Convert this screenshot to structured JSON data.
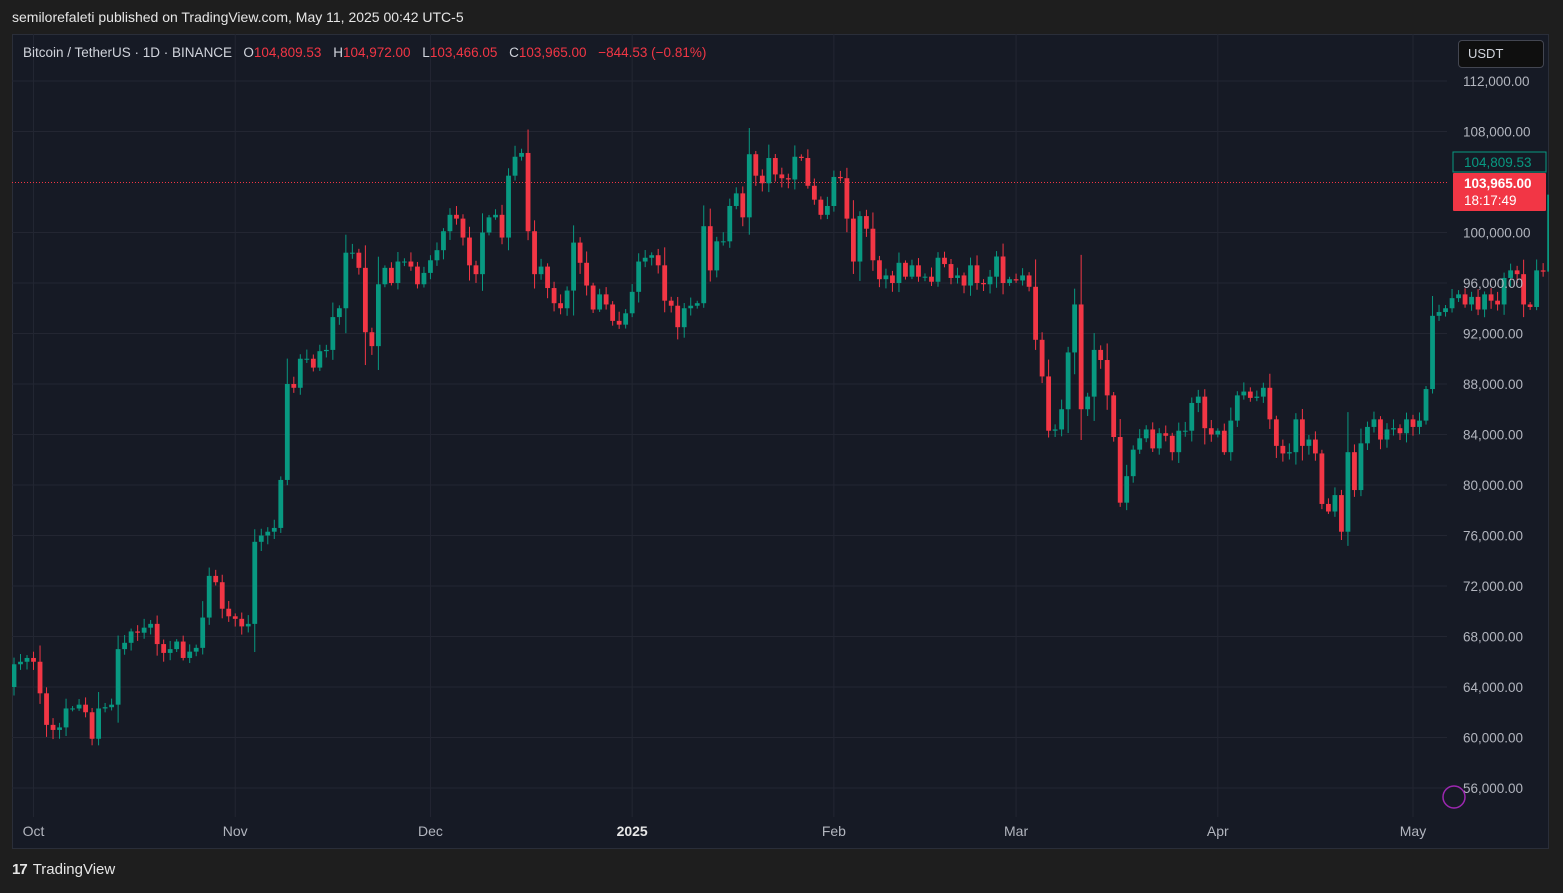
{
  "header": {
    "published_line": "semilorefaleti published on TradingView.com, May 11, 2025 00:42 UTC-5"
  },
  "legend": {
    "symbol": "Bitcoin / TetherUS · 1D · BINANCE",
    "open_label": "O",
    "open": "104,809.53",
    "high_label": "H",
    "high": "104,972.00",
    "low_label": "L",
    "low": "103,466.05",
    "close_label": "C",
    "close": "103,965.00",
    "change": "−844.53 (−0.81%)"
  },
  "currency_button": "USDT",
  "price_tags": {
    "open_tag": "104,809.53",
    "last_price": "103,965.00",
    "countdown": "18:17:49"
  },
  "footer": {
    "brand": "TradingView",
    "logo_glyph": "17"
  },
  "colors": {
    "up": "#089981",
    "down": "#f23645",
    "background": "#161a25",
    "grid": "#232632",
    "text": "#b2b5be"
  },
  "chart_data": {
    "type": "candlestick",
    "ylim": [
      53000,
      114000
    ],
    "y_ticks": [
      "112,000.00",
      "108,000.00",
      "100,000.00",
      "96,000.00",
      "92,000.00",
      "88,000.00",
      "84,000.00",
      "80,000.00",
      "76,000.00",
      "72,000.00",
      "68,000.00",
      "64,000.00",
      "60,000.00",
      "56,000.00"
    ],
    "x_ticks": [
      {
        "label": "Oct",
        "day": 3,
        "bold": false
      },
      {
        "label": "Nov",
        "day": 34,
        "bold": false
      },
      {
        "label": "Dec",
        "day": 64,
        "bold": false
      },
      {
        "label": "2025",
        "day": 95,
        "bold": true
      },
      {
        "label": "Feb",
        "day": 126,
        "bold": false
      },
      {
        "label": "Mar",
        "day": 154,
        "bold": false
      },
      {
        "label": "Apr",
        "day": 185,
        "bold": false
      },
      {
        "label": "May",
        "day": 215,
        "bold": false
      }
    ],
    "last_price": 103965,
    "closes": [
      65800,
      66000,
      66300,
      66000,
      63500,
      61000,
      60600,
      60800,
      62300,
      62300,
      62600,
      62000,
      59900,
      62300,
      62400,
      62600,
      67000,
      67500,
      68400,
      68300,
      68700,
      69000,
      67400,
      66700,
      67000,
      67600,
      66300,
      66800,
      67100,
      69500,
      72800,
      72300,
      70200,
      69600,
      69400,
      68800,
      69000,
      75500,
      76000,
      76300,
      76600,
      80400,
      88000,
      87700,
      90000,
      90000,
      89300,
      90600,
      90700,
      93300,
      94000,
      98400,
      98400,
      97200,
      92100,
      91000,
      95900,
      97200,
      96000,
      97700,
      97700,
      97300,
      95900,
      96800,
      97800,
      98600,
      100100,
      101400,
      101100,
      99600,
      97400,
      96700,
      100000,
      101200,
      101400,
      99600,
      104500,
      106000,
      106300,
      100100,
      96700,
      97300,
      95600,
      94400,
      94000,
      95400,
      99200,
      97600,
      95800,
      93900,
      95100,
      94300,
      93000,
      92700,
      93600,
      95300,
      97700,
      98000,
      98200,
      97400,
      94600,
      94200,
      92500,
      94000,
      94200,
      94400,
      100500,
      97000,
      99300,
      99300,
      102100,
      103100,
      101200,
      106200,
      104500,
      103900,
      105900,
      104600,
      104300,
      104200,
      106000,
      105900,
      103700,
      102600,
      101400,
      102100,
      104400,
      104300,
      101100,
      97700,
      101300,
      100300,
      97800,
      96300,
      96600,
      96000,
      97600,
      96500,
      97400,
      96500,
      96500,
      96100,
      98000,
      97500,
      96400,
      96600,
      95800,
      97400,
      96000,
      95900,
      96500,
      98100,
      96000,
      96300,
      96200,
      96600,
      95700,
      91500,
      88600,
      84300,
      84400,
      86000,
      90500,
      94300,
      86000,
      87000,
      90700,
      89900,
      87100,
      83800,
      78600,
      80700,
      82800,
      83700,
      84400,
      82900,
      84100,
      83900,
      82600,
      84300,
      84300,
      86500,
      87000,
      84500,
      84000,
      84300,
      82600,
      85100,
      87100,
      87400,
      86900,
      87000,
      87700,
      85200,
      83100,
      82500,
      82600,
      85200,
      83100,
      83600,
      82500,
      78500,
      77900,
      79200,
      76300,
      82600,
      79600,
      83300,
      84600,
      85200,
      83600,
      84400,
      84500,
      84100,
      85200,
      84600,
      85100,
      87600,
      93400,
      93700,
      94000,
      94800,
      95100,
      94300,
      94900,
      93900,
      95100,
      94600,
      94300,
      96400,
      97000,
      96700,
      94300,
      94100,
      97000,
      96900,
      103000,
      103400,
      104809,
      103965
    ]
  }
}
